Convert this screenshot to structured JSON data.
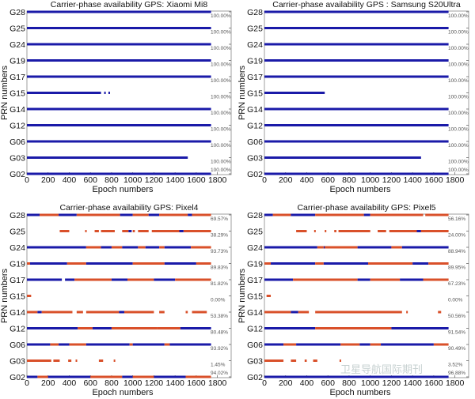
{
  "chart_data": [
    {
      "type": "scatter",
      "title": "Carrier-phase availability GPS: Xiaomi Mi8",
      "xlabel": "Epoch numbers",
      "ylabel": "PRN numbers",
      "xlim": [
        0,
        1930
      ],
      "xticks": [
        "0",
        "200",
        "400",
        "600",
        "800",
        "1000",
        "1200",
        "1400",
        "1600",
        "1800"
      ],
      "categories": [
        "G28",
        "G25",
        "G24",
        "G19",
        "G17",
        "G15",
        "G14",
        "G12",
        "G06",
        "G03",
        "G02"
      ],
      "percentages": [
        "100.00%",
        "100.00%",
        "100.00%",
        "100.00%",
        "100.00%",
        "100.00%",
        "100.00%",
        "100.00%",
        "100.00%",
        "100.00%",
        "100.00%"
      ],
      "segments": [
        [
          [
            0,
            1740,
            "b"
          ]
        ],
        [
          [
            0,
            1740,
            "b"
          ]
        ],
        [
          [
            0,
            1740,
            "b"
          ]
        ],
        [
          [
            0,
            1740,
            "b"
          ]
        ],
        [
          [
            0,
            1740,
            "b"
          ]
        ],
        [
          [
            0,
            700,
            "b"
          ],
          [
            730,
            745,
            "b"
          ],
          [
            770,
            785,
            "b"
          ]
        ],
        [
          [
            0,
            1740,
            "b"
          ]
        ],
        [
          [
            0,
            1740,
            "b"
          ]
        ],
        [
          [
            0,
            1740,
            "b"
          ]
        ],
        [
          [
            0,
            1520,
            "b"
          ]
        ],
        [
          [
            0,
            1740,
            "b"
          ]
        ]
      ]
    },
    {
      "type": "scatter",
      "title": "Carrier-phase availability GPS : Samsung S20Ultra",
      "xlabel": "Epoch numbers",
      "ylabel": "PRN numbers",
      "xlim": [
        0,
        1930
      ],
      "xticks": [
        "0",
        "200",
        "400",
        "600",
        "800",
        "1000",
        "1200",
        "1400",
        "1600",
        "1800"
      ],
      "categories": [
        "G28",
        "G25",
        "G24",
        "G19",
        "G17",
        "G15",
        "G14",
        "G12",
        "G06",
        "G03",
        "G02"
      ],
      "percentages": [
        "100.00%",
        "100.00%",
        "100.00%",
        "100.00%",
        "100.00%",
        "100.00%",
        "100.00%",
        "100.00%",
        "100.00%",
        "100.00%",
        "100.00%"
      ],
      "segments": [
        [
          [
            0,
            1740,
            "b"
          ]
        ],
        [
          [
            0,
            1740,
            "b"
          ]
        ],
        [
          [
            0,
            1740,
            "b"
          ]
        ],
        [
          [
            0,
            1740,
            "b"
          ]
        ],
        [
          [
            0,
            1740,
            "b"
          ]
        ],
        [
          [
            0,
            570,
            "b"
          ]
        ],
        [
          [
            0,
            1740,
            "b"
          ]
        ],
        [
          [
            0,
            1740,
            "b"
          ]
        ],
        [
          [
            0,
            1740,
            "b"
          ]
        ],
        [
          [
            0,
            1480,
            "b"
          ]
        ],
        [
          [
            0,
            1740,
            "b"
          ]
        ]
      ]
    },
    {
      "type": "scatter",
      "title": "Carrier-phase availability GPS: Pixel4",
      "xlabel": "Epoch numbers",
      "ylabel": "PRN numbers",
      "xlim": [
        0,
        1930
      ],
      "xticks": [
        "0",
        "200",
        "400",
        "600",
        "800",
        "1000",
        "1200",
        "1400",
        "1600",
        "1800"
      ],
      "categories": [
        "G28",
        "G25",
        "G24",
        "G19",
        "G17",
        "G15",
        "G14",
        "G12",
        "G06",
        "G03",
        "G02"
      ],
      "percentages": [
        "69.57%",
        "38.29%",
        "93.73%",
        "89.83%",
        "81.82%",
        "0.00%",
        "53.38%",
        "80.48%",
        "93.92%",
        "1.45%",
        "94.02%"
      ],
      "segments": [
        [
          [
            0,
            120,
            "b"
          ],
          [
            120,
            300,
            "r"
          ],
          [
            300,
            470,
            "b"
          ],
          [
            470,
            880,
            "r"
          ],
          [
            880,
            1000,
            "b"
          ],
          [
            1000,
            1150,
            "r"
          ],
          [
            1150,
            1250,
            "b"
          ],
          [
            1250,
            1520,
            "r"
          ],
          [
            1520,
            1560,
            "b"
          ],
          [
            1560,
            1740,
            "r"
          ]
        ],
        [
          [
            310,
            400,
            "r"
          ],
          [
            550,
            560,
            "r"
          ],
          [
            640,
            680,
            "r"
          ],
          [
            700,
            830,
            "r"
          ],
          [
            900,
            960,
            "r"
          ],
          [
            960,
            990,
            "b"
          ],
          [
            1000,
            1020,
            "r"
          ],
          [
            1050,
            1150,
            "r"
          ],
          [
            1180,
            1440,
            "r"
          ],
          [
            1440,
            1480,
            "b"
          ],
          [
            1480,
            1740,
            "r"
          ]
        ],
        [
          [
            0,
            560,
            "b"
          ],
          [
            560,
            700,
            "r"
          ],
          [
            700,
            800,
            "b"
          ],
          [
            800,
            900,
            "r"
          ],
          [
            900,
            1050,
            "b"
          ],
          [
            1050,
            1120,
            "r"
          ],
          [
            1120,
            1250,
            "b"
          ],
          [
            1250,
            1300,
            "r"
          ],
          [
            1300,
            1550,
            "b"
          ],
          [
            1550,
            1740,
            "r"
          ]
        ],
        [
          [
            0,
            30,
            "r"
          ],
          [
            30,
            380,
            "b"
          ],
          [
            380,
            560,
            "r"
          ],
          [
            560,
            1000,
            "b"
          ],
          [
            1000,
            1300,
            "r"
          ],
          [
            1300,
            1600,
            "b"
          ],
          [
            1600,
            1740,
            "r"
          ]
        ],
        [
          [
            0,
            330,
            "b"
          ],
          [
            360,
            450,
            "b"
          ],
          [
            450,
            800,
            "r"
          ],
          [
            800,
            950,
            "b"
          ],
          [
            950,
            1200,
            "r"
          ],
          [
            1200,
            1400,
            "b"
          ],
          [
            1400,
            1740,
            "r"
          ]
        ],
        [
          [
            0,
            40,
            "r"
          ]
        ],
        [
          [
            0,
            100,
            "r"
          ],
          [
            100,
            140,
            "b"
          ],
          [
            140,
            430,
            "r"
          ],
          [
            470,
            530,
            "r"
          ],
          [
            560,
            870,
            "r"
          ],
          [
            870,
            920,
            "b"
          ],
          [
            920,
            1200,
            "r"
          ],
          [
            1250,
            1300,
            "r"
          ],
          [
            1500,
            1520,
            "r"
          ],
          [
            1560,
            1700,
            "r"
          ]
        ],
        [
          [
            0,
            480,
            "b"
          ],
          [
            480,
            620,
            "r"
          ],
          [
            620,
            800,
            "b"
          ],
          [
            800,
            1230,
            "r"
          ],
          [
            1230,
            1450,
            "r"
          ],
          [
            1450,
            1740,
            "b"
          ]
        ],
        [
          [
            0,
            220,
            "b"
          ],
          [
            220,
            300,
            "r"
          ],
          [
            300,
            400,
            "b"
          ],
          [
            400,
            560,
            "r"
          ],
          [
            560,
            970,
            "b"
          ],
          [
            970,
            1000,
            "r"
          ],
          [
            1000,
            1300,
            "b"
          ],
          [
            1300,
            1350,
            "r"
          ],
          [
            1350,
            1740,
            "b"
          ]
        ],
        [
          [
            0,
            230,
            "r"
          ],
          [
            250,
            310,
            "r"
          ],
          [
            390,
            420,
            "r"
          ],
          [
            460,
            470,
            "r"
          ],
          [
            680,
            720,
            "r"
          ],
          [
            820,
            830,
            "r"
          ]
        ],
        [
          [
            0,
            100,
            "b"
          ],
          [
            100,
            200,
            "r"
          ],
          [
            200,
            600,
            "b"
          ],
          [
            600,
            900,
            "r"
          ],
          [
            900,
            1000,
            "b"
          ],
          [
            1000,
            1200,
            "r"
          ],
          [
            1200,
            1500,
            "b"
          ],
          [
            1500,
            1740,
            "r"
          ]
        ]
      ]
    },
    {
      "type": "scatter",
      "title": "Carrier-phase availability GPS: Pixel5",
      "xlabel": "Epoch numbers",
      "ylabel": "PRN numbers",
      "xlim": [
        0,
        1930
      ],
      "xticks": [
        "0",
        "200",
        "400",
        "600",
        "800",
        "1000",
        "1200",
        "1400",
        "1600",
        "1800"
      ],
      "categories": [
        "G28",
        "G25",
        "G24",
        "G19",
        "G17",
        "G15",
        "G14",
        "G12",
        "G06",
        "G03",
        "G02"
      ],
      "percentages": [
        "56.16%",
        "24.00%",
        "88.94%",
        "89.95%",
        "67.23%",
        "0.00%",
        "50.56%",
        "91.54%",
        "90.49%",
        "3.52%",
        "96.88%"
      ],
      "segments": [
        [
          [
            0,
            80,
            "b"
          ],
          [
            80,
            250,
            "r"
          ],
          [
            250,
            480,
            "b"
          ],
          [
            480,
            940,
            "r"
          ],
          [
            940,
            1000,
            "b"
          ],
          [
            1000,
            1500,
            "r"
          ],
          [
            1520,
            1740,
            "r"
          ]
        ],
        [
          [
            300,
            400,
            "r"
          ],
          [
            470,
            480,
            "r"
          ],
          [
            570,
            580,
            "r"
          ],
          [
            660,
            680,
            "r"
          ],
          [
            700,
            1000,
            "r"
          ],
          [
            1070,
            1150,
            "r"
          ],
          [
            1180,
            1440,
            "r"
          ],
          [
            1440,
            1480,
            "b"
          ],
          [
            1480,
            1740,
            "r"
          ]
        ],
        [
          [
            0,
            500,
            "b"
          ],
          [
            500,
            560,
            "r"
          ],
          [
            560,
            570,
            "b"
          ],
          [
            570,
            880,
            "r"
          ],
          [
            880,
            1200,
            "b"
          ],
          [
            1200,
            1300,
            "r"
          ],
          [
            1300,
            1740,
            "b"
          ]
        ],
        [
          [
            0,
            60,
            "r"
          ],
          [
            60,
            480,
            "b"
          ],
          [
            480,
            560,
            "r"
          ],
          [
            560,
            980,
            "b"
          ],
          [
            980,
            1400,
            "r"
          ],
          [
            1400,
            1550,
            "b"
          ],
          [
            1550,
            1740,
            "r"
          ]
        ],
        [
          [
            0,
            270,
            "b"
          ],
          [
            270,
            880,
            "r"
          ],
          [
            880,
            1000,
            "b"
          ],
          [
            1000,
            1280,
            "r"
          ],
          [
            1280,
            1500,
            "b"
          ],
          [
            1500,
            1740,
            "r"
          ]
        ],
        [
          [
            20,
            60,
            "r"
          ]
        ],
        [
          [
            0,
            250,
            "r"
          ],
          [
            250,
            320,
            "b"
          ],
          [
            320,
            420,
            "r"
          ],
          [
            480,
            1300,
            "r"
          ],
          [
            1340,
            1350,
            "r"
          ],
          [
            1640,
            1670,
            "r"
          ]
        ],
        [
          [
            0,
            480,
            "b"
          ],
          [
            480,
            1200,
            "r"
          ],
          [
            1200,
            1740,
            "b"
          ]
        ],
        [
          [
            0,
            180,
            "b"
          ],
          [
            180,
            300,
            "r"
          ],
          [
            300,
            720,
            "b"
          ],
          [
            720,
            900,
            "r"
          ],
          [
            900,
            1000,
            "b"
          ],
          [
            1000,
            1100,
            "r"
          ],
          [
            1100,
            1600,
            "b"
          ],
          [
            1600,
            1740,
            "r"
          ]
        ],
        [
          [
            0,
            180,
            "r"
          ],
          [
            250,
            300,
            "r"
          ],
          [
            380,
            400,
            "r"
          ],
          [
            460,
            500,
            "r"
          ],
          [
            710,
            720,
            "r"
          ]
        ],
        [
          [
            0,
            1740,
            "b"
          ]
        ]
      ]
    }
  ],
  "colors": {
    "b": "#1a1aa8",
    "r": "#d9502a",
    "axis": "#222222"
  },
  "watermark": "卫星导航国际期刊"
}
